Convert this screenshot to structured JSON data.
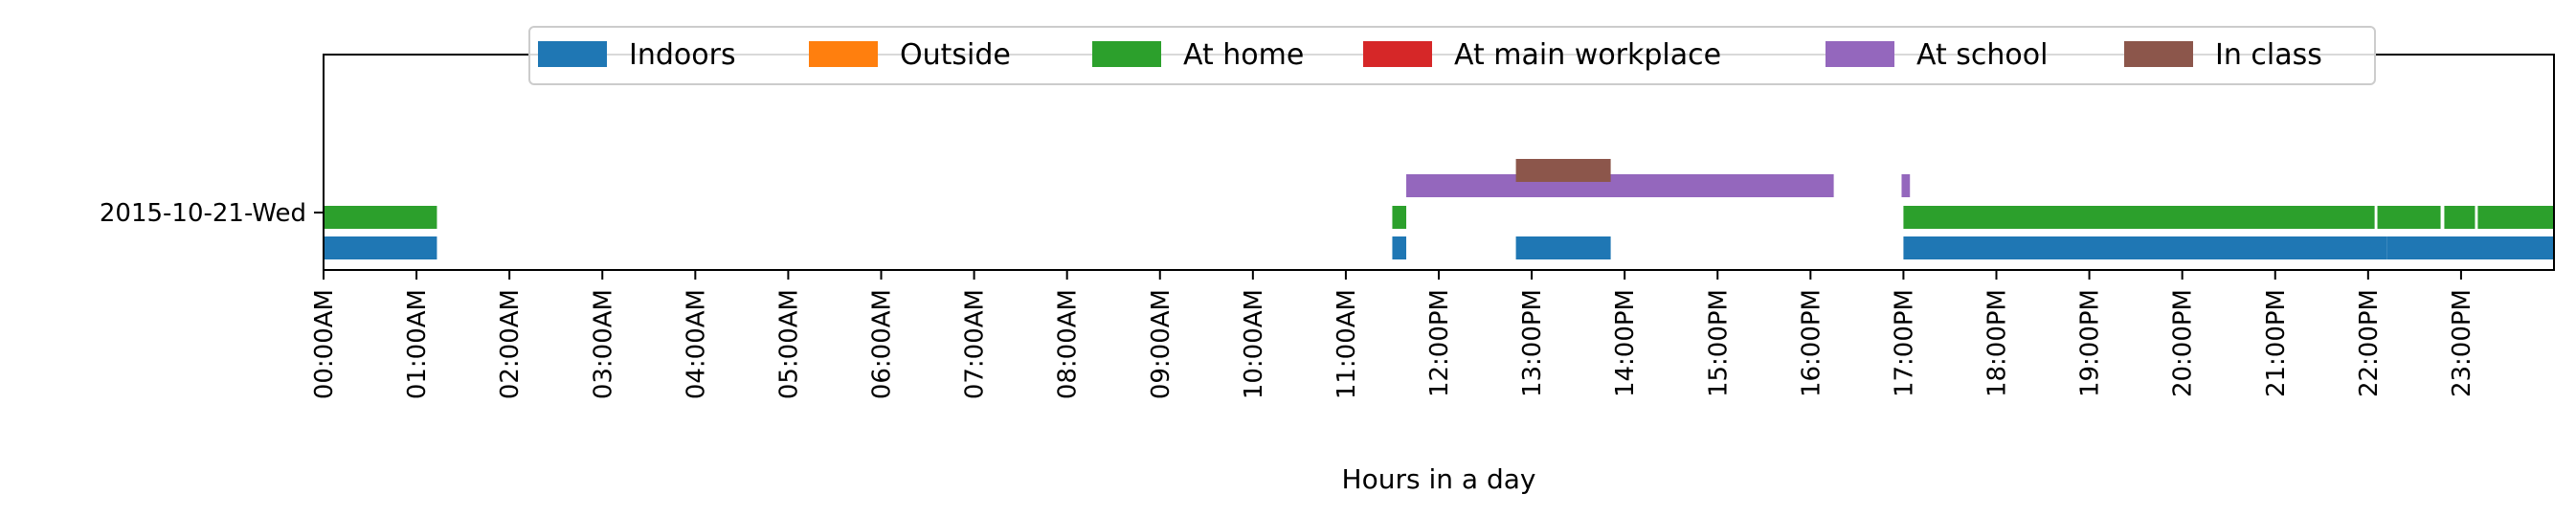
{
  "chart_data": {
    "type": "timeline",
    "xlabel": "Hours in a day",
    "ylabel": "",
    "title": "",
    "xlim": [
      0,
      24
    ],
    "x_ticks": [
      {
        "value": 0,
        "label": "00:00AM"
      },
      {
        "value": 1,
        "label": "01:00AM"
      },
      {
        "value": 2,
        "label": "02:00AM"
      },
      {
        "value": 3,
        "label": "03:00AM"
      },
      {
        "value": 4,
        "label": "04:00AM"
      },
      {
        "value": 5,
        "label": "05:00AM"
      },
      {
        "value": 6,
        "label": "06:00AM"
      },
      {
        "value": 7,
        "label": "07:00AM"
      },
      {
        "value": 8,
        "label": "08:00AM"
      },
      {
        "value": 9,
        "label": "09:00AM"
      },
      {
        "value": 10,
        "label": "10:00AM"
      },
      {
        "value": 11,
        "label": "11:00AM"
      },
      {
        "value": 12,
        "label": "12:00PM"
      },
      {
        "value": 13,
        "label": "13:00PM"
      },
      {
        "value": 14,
        "label": "14:00PM"
      },
      {
        "value": 15,
        "label": "15:00PM"
      },
      {
        "value": 16,
        "label": "16:00PM"
      },
      {
        "value": 17,
        "label": "17:00PM"
      },
      {
        "value": 18,
        "label": "18:00PM"
      },
      {
        "value": 19,
        "label": "19:00PM"
      },
      {
        "value": 20,
        "label": "20:00PM"
      },
      {
        "value": 21,
        "label": "21:00PM"
      },
      {
        "value": 22,
        "label": "22:00PM"
      },
      {
        "value": 23,
        "label": "23:00PM"
      }
    ],
    "y_ticks": [
      "2015-10-21-Wed"
    ],
    "legend_position": "top-center",
    "grid": false,
    "series": [
      {
        "name": "Indoors",
        "color": "#1f77b4",
        "intervals": [
          [
            0,
            1.22
          ],
          [
            11.5,
            11.65
          ],
          [
            12.83,
            13.85
          ],
          [
            17.0,
            22.2
          ],
          [
            22.2,
            24.0
          ]
        ]
      },
      {
        "name": "Outside",
        "color": "#ff7f0e",
        "intervals": []
      },
      {
        "name": "At home",
        "color": "#2ca02c",
        "intervals": [
          [
            0,
            1.22
          ],
          [
            11.5,
            11.65
          ],
          [
            17.0,
            22.07
          ],
          [
            22.1,
            22.78
          ],
          [
            22.82,
            23.15
          ],
          [
            23.18,
            24.0
          ]
        ]
      },
      {
        "name": "At main workplace",
        "color": "#d62728",
        "intervals": []
      },
      {
        "name": "At school",
        "color": "#9467bd",
        "intervals": [
          [
            11.65,
            16.25
          ],
          [
            16.98,
            17.07
          ]
        ]
      },
      {
        "name": "In class",
        "color": "#8c564b",
        "intervals": [
          [
            12.83,
            13.85
          ]
        ]
      }
    ]
  }
}
